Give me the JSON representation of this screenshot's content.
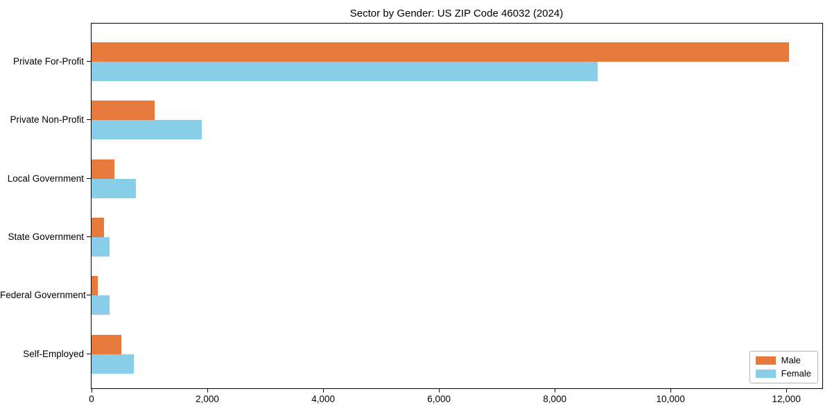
{
  "title": "Sector by Gender: US ZIP Code 46032 (2024)",
  "chart_data": {
    "type": "bar",
    "orientation": "horizontal",
    "title": "Sector by Gender: US ZIP Code 46032 (2024)",
    "xlabel": "",
    "ylabel": "",
    "grid": false,
    "legend_position": "lower right",
    "categories": [
      "Private For-Profit",
      "Private Non-Profit",
      "Local Government",
      "State Government",
      "Federal Government",
      "Self-Employed"
    ],
    "series": [
      {
        "name": "Male",
        "color": "#e67a3c",
        "values": [
          12040,
          1090,
          400,
          220,
          105,
          520
        ]
      },
      {
        "name": "Female",
        "color": "#89cee8",
        "values": [
          8740,
          1900,
          770,
          310,
          315,
          730
        ]
      }
    ],
    "xlim": [
      0,
      12620
    ],
    "x_ticks": [
      0,
      2000,
      4000,
      6000,
      8000,
      10000,
      12000
    ],
    "x_tick_labels": [
      "0",
      "2,000",
      "4,000",
      "6,000",
      "8,000",
      "10,000",
      "12,000"
    ]
  }
}
